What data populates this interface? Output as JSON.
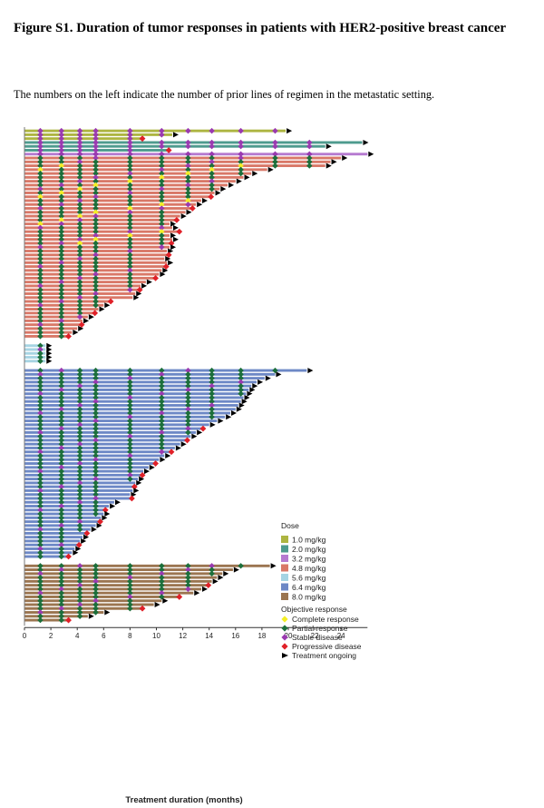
{
  "figure": {
    "title": "Figure S1. Duration of tumor responses in patients with HER2-positive breast cancer",
    "subtitle": "The numbers on the left indicate the number of prior lines of regimen in the metastatic setting."
  },
  "chart_data": {
    "type": "bar",
    "orientation": "horizontal",
    "title": "",
    "xlabel": "Treatment duration (months)",
    "ylabel": "",
    "xlim": [
      0,
      26
    ],
    "xticks": [
      0,
      2,
      4,
      6,
      8,
      10,
      12,
      14,
      16,
      18,
      20,
      22,
      24
    ],
    "legend_position": "right",
    "dose_title": "Dose",
    "response_title": "Objective response",
    "doses": [
      {
        "label": "1.0 mg/kg",
        "color": "#adb541"
      },
      {
        "label": "2.0 mg/kg",
        "color": "#4e9b8e"
      },
      {
        "label": "3.2 mg/kg",
        "color": "#b67ad0"
      },
      {
        "label": "4.8 mg/kg",
        "color": "#d97868"
      },
      {
        "label": "5.6 mg/kg",
        "color": "#a6d4e3"
      },
      {
        "label": "6.4 mg/kg",
        "color": "#6d88c6"
      },
      {
        "label": "8.0 mg/kg",
        "color": "#9b7550"
      }
    ],
    "responses": [
      {
        "label": "Complete response",
        "color": "#f3ee25",
        "marker": "diamond"
      },
      {
        "label": "Partial response",
        "color": "#1c6f3b",
        "marker": "diamond"
      },
      {
        "label": "Stable disease",
        "color": "#9a3ab0",
        "marker": "diamond"
      },
      {
        "label": "Progressive disease",
        "color": "#e02028",
        "marker": "diamond"
      },
      {
        "label": "Treatment ongoing",
        "color": "#000000",
        "marker": "arrow"
      }
    ],
    "dose_groups": [
      {
        "dose": "1.0 mg/kg",
        "durations": [
          19.8,
          11.2,
          8.8
        ]
      },
      {
        "dose": "2.0 mg/kg",
        "durations": [
          25.6,
          22.8,
          10.8
        ]
      },
      {
        "dose": "3.2 mg/kg",
        "durations": [
          26.0
        ]
      },
      {
        "dose": "4.8 mg/kg",
        "durations": [
          24.0,
          23.2,
          22.8,
          18.4,
          17.2,
          16.6,
          16.0,
          15.4,
          14.8,
          14.4,
          14.0,
          13.4,
          13.0,
          12.6,
          12.2,
          11.8,
          11.4,
          11.0,
          11.2,
          11.6,
          11.0,
          11.2,
          11.0,
          11.0,
          10.8,
          10.8,
          10.6,
          10.8,
          10.6,
          10.4,
          10.2,
          9.8,
          9.2,
          8.8,
          8.6,
          8.4,
          8.2,
          6.4,
          6.0,
          5.6,
          5.2,
          4.8,
          4.4,
          4.2,
          4.0,
          3.6,
          3.2
        ]
      },
      {
        "dose": "5.6 mg/kg",
        "durations": [
          1.6,
          1.6,
          1.6,
          1.6,
          1.6
        ]
      },
      {
        "dose": "6.4 mg/kg",
        "durations": [
          21.4,
          19.0,
          18.2,
          17.6,
          17.2,
          17.0,
          16.8,
          16.6,
          16.4,
          16.2,
          16.0,
          15.6,
          15.2,
          14.6,
          14.0,
          13.4,
          13.0,
          12.6,
          12.2,
          11.8,
          11.4,
          11.0,
          10.6,
          10.2,
          9.8,
          9.4,
          9.0,
          8.8,
          8.6,
          8.4,
          8.2,
          8.2,
          8.0,
          8.0,
          6.8,
          6.4,
          6.0,
          6.0,
          5.8,
          5.6,
          5.4,
          5.0,
          4.6,
          4.4,
          4.2,
          4.0,
          3.8,
          3.6,
          3.2
        ]
      },
      {
        "dose": "8.0 mg/kg",
        "durations": [
          18.6,
          15.8,
          15.0,
          14.6,
          14.2,
          13.8,
          13.4,
          12.8,
          11.6,
          10.4,
          9.8,
          8.8,
          6.0,
          4.8,
          3.2
        ]
      }
    ]
  }
}
